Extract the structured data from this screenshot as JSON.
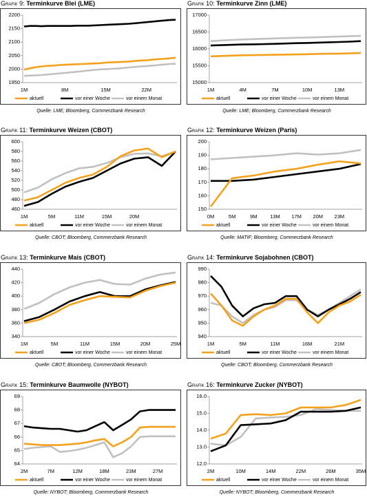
{
  "chart_data": [
    {
      "type": "line",
      "label": "Grafik 9:",
      "title": "Terminkurve Blei (LME)",
      "source": "Quelle: LME; Bloomberg, Commerzbank Research",
      "categories": [
        "1M",
        null,
        null,
        null,
        null,
        null,
        null,
        "8M",
        null,
        null,
        null,
        null,
        null,
        null,
        "15M",
        null,
        null,
        null,
        null,
        null,
        null,
        "22M",
        null,
        null,
        null,
        null,
        null
      ],
      "ylim": [
        1950,
        2200
      ],
      "yticks": [
        1950,
        2000,
        2050,
        2100,
        2150,
        2200
      ],
      "series": [
        {
          "name": "aktuell",
          "color": "#f5a01a",
          "values": [
            1998,
            2003,
            2007,
            2010,
            2012,
            2013,
            2015,
            2016,
            2017,
            2018,
            2019,
            2020,
            2021,
            2022,
            2024,
            2025,
            2026,
            2027,
            2028,
            2030,
            2032,
            2033,
            2035,
            2037,
            2038,
            2040,
            2042
          ]
        },
        {
          "name": "vor einer Woche",
          "color": "#000000",
          "values": [
            2158,
            2160,
            2160,
            2159,
            2160,
            2160,
            2160,
            2160,
            2160,
            2161,
            2161,
            2161,
            2162,
            2163,
            2164,
            2165,
            2166,
            2167,
            2168,
            2170,
            2172,
            2174,
            2176,
            2178,
            2180,
            2182,
            2183
          ]
        },
        {
          "name": "vor einem Monat",
          "color": "#c0c0c0",
          "values": [
            1975,
            1976,
            1977,
            1978,
            1980,
            1982,
            1984,
            1986,
            1988,
            1990,
            1992,
            1995,
            1997,
            1999,
            2000,
            2001,
            2002,
            2004,
            2006,
            2008,
            2010,
            2011,
            2013,
            2015,
            2017,
            2019,
            2020
          ]
        }
      ]
    },
    {
      "type": "line",
      "label": "Grafik 10:",
      "title": "Terminkurve Zinn (LME)",
      "source": "Quelle: LME; Bloomberg, Commerzbank Research",
      "categories": [
        "1M",
        null,
        null,
        "4M",
        null,
        null,
        "7M",
        null,
        null,
        "10M",
        null,
        null,
        "13M",
        null,
        null
      ],
      "ylim": [
        15000,
        17000
      ],
      "yticks": [
        15000,
        15500,
        16000,
        16500,
        17000
      ],
      "series": [
        {
          "name": "aktuell",
          "color": "#f5a01a",
          "values": [
            15780,
            15790,
            15800,
            15810,
            15815,
            15820,
            15825,
            15830,
            15835,
            15840,
            15850,
            15855,
            15860,
            15870,
            15880
          ]
        },
        {
          "name": "vor einer Woche",
          "color": "#000000",
          "values": [
            16100,
            16110,
            16120,
            16130,
            16135,
            16140,
            16150,
            16160,
            16170,
            16175,
            16185,
            16195,
            16205,
            16215,
            16230
          ]
        },
        {
          "name": "vor einem Monat",
          "color": "#c0c0c0",
          "values": [
            16230,
            16250,
            16265,
            16280,
            16290,
            16300,
            16310,
            16320,
            16330,
            16335,
            16345,
            16355,
            16365,
            16375,
            16385
          ]
        }
      ]
    },
    {
      "type": "line",
      "label": "Grafik 11:",
      "title": "Terminkurve Weizen (CBOT)",
      "source": "Quelle: CBOT; Bloomberg, Commerzbank Research",
      "categories": [
        "1M",
        null,
        "5M",
        null,
        "11M",
        null,
        "15M",
        null,
        "20M",
        null,
        null,
        null
      ],
      "ylim": [
        460,
        600
      ],
      "yticks": [
        460,
        480,
        500,
        520,
        540,
        560,
        580,
        600
      ],
      "series": [
        {
          "name": "aktuell",
          "color": "#f5a01a",
          "values": [
            478,
            485,
            500,
            515,
            525,
            532,
            548,
            570,
            582,
            586,
            568,
            580
          ]
        },
        {
          "name": "vor einer Woche",
          "color": "#000000",
          "values": [
            467,
            475,
            492,
            507,
            517,
            525,
            540,
            555,
            565,
            568,
            550,
            580
          ]
        },
        {
          "name": "vor einem Monat",
          "color": "#c0c0c0",
          "values": [
            495,
            505,
            522,
            535,
            545,
            548,
            556,
            568,
            575,
            576,
            570,
            580
          ]
        }
      ]
    },
    {
      "type": "line",
      "label": "Grafik 12:",
      "title": "Terminkurve Weizen (Paris)",
      "source": "Quelle: MATIF; Bloomberg, Commerzbank Research",
      "categories": [
        "0M",
        "5M",
        "9M",
        "13M",
        "17M",
        "20M",
        "23M",
        null
      ],
      "ylim": [
        150,
        200
      ],
      "yticks": [
        150,
        160,
        170,
        180,
        190,
        200
      ],
      "series": [
        {
          "name": "aktuell",
          "color": "#f5a01a",
          "values": [
            152,
            173,
            175,
            178,
            180,
            183,
            185.5,
            184
          ]
        },
        {
          "name": "vor einer Woche",
          "color": "#000000",
          "values": [
            171,
            171,
            172,
            174,
            176,
            178,
            180,
            183.5
          ]
        },
        {
          "name": "vor einem Monat",
          "color": "#c0c0c0",
          "values": [
            187,
            188,
            189,
            190,
            191.5,
            190.5,
            191.5,
            194
          ]
        }
      ]
    },
    {
      "type": "line",
      "label": "Grafik 13:",
      "title": "Terminkurve Mais (CBOT)",
      "source": "Quelle: CBOT; Bloomberg, Commerzbank Research",
      "categories": [
        "1M",
        null,
        "5M",
        null,
        "11M",
        null,
        "15M",
        null,
        "20M",
        null,
        "25M"
      ],
      "ylim": [
        340,
        440
      ],
      "yticks": [
        340,
        360,
        380,
        400,
        420,
        440
      ],
      "series": [
        {
          "name": "aktuell",
          "color": "#f5a01a",
          "values": [
            360,
            365,
            375,
            387,
            394,
            400,
            399,
            398,
            408,
            415,
            420
          ]
        },
        {
          "name": "vor einer Woche",
          "color": "#000000",
          "values": [
            363,
            369,
            380,
            392,
            400,
            406,
            400,
            400,
            410,
            416,
            421
          ]
        },
        {
          "name": "vor einem Monat",
          "color": "#c0c0c0",
          "values": [
            381,
            390,
            403,
            413,
            420,
            424,
            418,
            417,
            426,
            432,
            435
          ]
        }
      ]
    },
    {
      "type": "line",
      "label": "Grafik 14:",
      "title": "Terminkurve Sojabohnen (CBOT)",
      "source": "Quelle: CBOT; Bloomberg, Commerzbank Research",
      "categories": [
        "1M",
        null,
        null,
        "5M",
        null,
        null,
        "11M",
        null,
        null,
        "16M",
        null,
        null,
        "21M",
        null,
        null
      ],
      "ylim": [
        940,
        990
      ],
      "yticks": [
        940,
        950,
        960,
        970,
        980,
        990
      ],
      "series": [
        {
          "name": "aktuell",
          "color": "#f5a01a",
          "values": [
            972,
            963,
            952,
            948,
            955,
            960,
            963,
            968,
            968,
            958,
            950,
            958,
            963,
            966,
            971
          ]
        },
        {
          "name": "vor einer Woche",
          "color": "#000000",
          "values": [
            985,
            977,
            963,
            955,
            961,
            964,
            965,
            970,
            970,
            960,
            955,
            960,
            964,
            968,
            973
          ]
        },
        {
          "name": "vor einem Monat",
          "color": "#c0c0c0",
          "values": [
            965,
            963,
            955,
            950,
            956,
            960,
            962,
            967,
            967,
            960,
            956,
            960,
            965,
            970,
            975
          ]
        }
      ]
    },
    {
      "type": "line",
      "label": "Grafik 15:",
      "title": "Terminkurve Baumwolle (NYBOT)",
      "source": "Quelle: NYBOT; Bloomberg, Commerzbank Research",
      "categories": [
        "2M",
        null,
        null,
        "7M",
        null,
        null,
        "12M",
        null,
        null,
        "18M",
        null,
        null,
        "23M",
        null,
        null,
        "27M",
        null,
        null
      ],
      "ylim": [
        64,
        69
      ],
      "yticks": [
        64,
        65,
        66,
        67,
        68,
        69
      ],
      "series": [
        {
          "name": "aktuell",
          "color": "#f5a01a",
          "values": [
            65.5,
            65.45,
            65.4,
            65.4,
            65.4,
            65.45,
            65.5,
            65.6,
            65.75,
            65.85,
            65.3,
            65.6,
            66.0,
            66.7,
            66.75,
            66.75,
            66.75,
            66.75
          ]
        },
        {
          "name": "vor einer Woche",
          "color": "#000000",
          "values": [
            66.8,
            66.7,
            66.65,
            66.6,
            66.6,
            66.5,
            66.4,
            66.5,
            66.8,
            67.1,
            66.5,
            66.9,
            67.3,
            67.9,
            68.0,
            68.0,
            68.0,
            68.0
          ]
        },
        {
          "name": "vor einem Monat",
          "color": "#c0c0c0",
          "values": [
            65.1,
            65.2,
            65.25,
            65.3,
            64.9,
            64.95,
            65.05,
            65.2,
            65.4,
            65.6,
            64.5,
            64.8,
            65.3,
            66.0,
            66.05,
            66.05,
            66.05,
            66.05
          ]
        }
      ]
    },
    {
      "type": "line",
      "label": "Grafik 16:",
      "title": "Terminkurve Zucker (NYBOT)",
      "source": "Quelle: NYBOT; Bloomberg, Commerzbank Research",
      "categories": [
        "2M",
        null,
        "10M",
        null,
        "14M",
        null,
        "22M",
        null,
        "26M",
        null,
        "35M"
      ],
      "ylim": [
        12,
        16
      ],
      "yticks": [
        {
          "value": 12,
          "label": "12.0"
        },
        {
          "value": 13,
          "label": "13.0"
        },
        {
          "value": 14,
          "label": "14.0"
        },
        {
          "value": 15,
          "label": "15.0"
        },
        {
          "value": 16,
          "label": "16.0"
        }
      ],
      "series": [
        {
          "name": "aktuell",
          "color": "#f5a01a",
          "values": [
            13.5,
            13.8,
            14.9,
            14.95,
            14.9,
            15.0,
            15.35,
            15.35,
            15.35,
            15.5,
            15.8
          ]
        },
        {
          "name": "vor einer Woche",
          "color": "#000000",
          "values": [
            12.75,
            13.1,
            14.3,
            14.35,
            14.4,
            14.6,
            15.1,
            15.1,
            15.1,
            15.15,
            15.35
          ]
        },
        {
          "name": "vor einem Monat",
          "color": "#c0c0c0",
          "values": [
            13.2,
            13.1,
            13.6,
            14.7,
            14.75,
            14.8,
            14.9,
            15.25,
            15.2,
            15.15,
            15.15
          ]
        }
      ]
    }
  ]
}
